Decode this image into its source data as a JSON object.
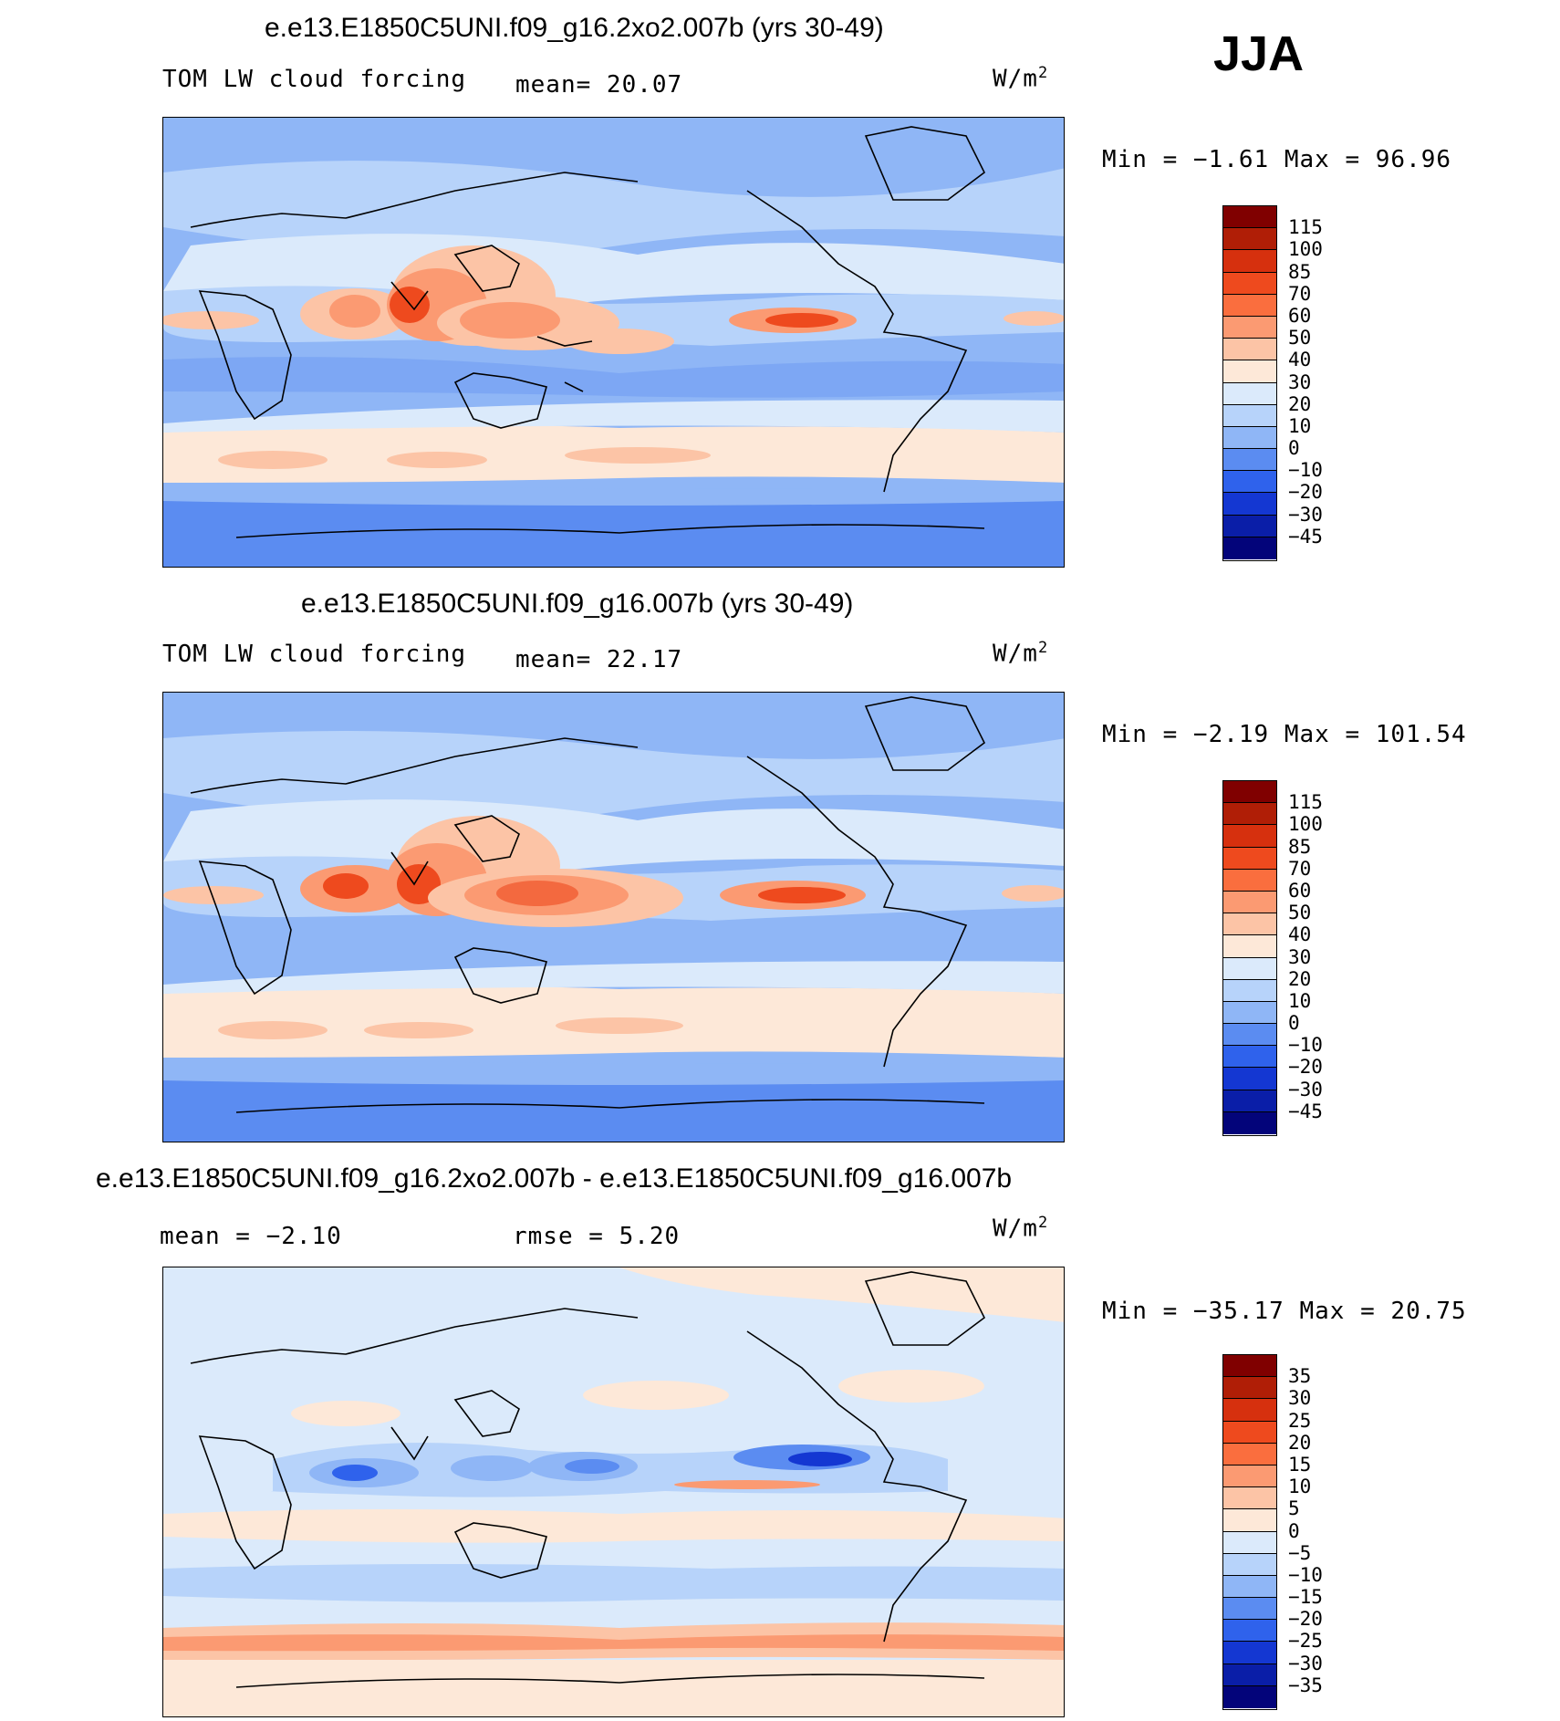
{
  "season": "JJA",
  "units_base": "W/m",
  "units_exp": "2",
  "panels": [
    {
      "title": "e.e13.E1850C5UNI.f09_g16.2xo2.007b (yrs 30-49)",
      "left_label": "TOM LW cloud forcing",
      "stat1": "mean=  20.07",
      "stat2": "",
      "minmax": "Min =  −1.61 Max =  96.96"
    },
    {
      "title": "e.e13.E1850C5UNI.f09_g16.007b (yrs 30-49)",
      "left_label": "TOM LW cloud forcing",
      "stat1": "mean=  22.17",
      "stat2": "",
      "minmax": "Min =  −2.19 Max = 101.54"
    },
    {
      "title": "e.e13.E1850C5UNI.f09_g16.2xo2.007b - e.e13.E1850C5UNI.f09_g16.007b",
      "left_label": "",
      "stat1": "mean =  −2.10",
      "stat2": "rmse =   5.20",
      "minmax": "Min = −35.17 Max =  20.75"
    }
  ],
  "colorbars": {
    "main": {
      "labels": [
        "115",
        "100",
        "85",
        "70",
        "60",
        "50",
        "40",
        "30",
        "20",
        "10",
        "0",
        "−10",
        "−20",
        "−30",
        "−45"
      ],
      "colors": [
        "#800000",
        "#b01e06",
        "#d6300e",
        "#ee4a1e",
        "#fa6e3e",
        "#fb9a72",
        "#fcc4a6",
        "#fde8d8",
        "#dbeafb",
        "#b7d3fa",
        "#8fb6f6",
        "#5b8cf1",
        "#2f62ec",
        "#1437d2",
        "#0a1ea8",
        "#03047a"
      ]
    },
    "diff": {
      "labels": [
        "35",
        "30",
        "25",
        "20",
        "15",
        "10",
        "5",
        "0",
        "−5",
        "−10",
        "−15",
        "−20",
        "−25",
        "−30",
        "−35"
      ],
      "colors": [
        "#800000",
        "#b01e06",
        "#d6300e",
        "#ee4a1e",
        "#fa6e3e",
        "#fb9a72",
        "#fcc4a6",
        "#fde8d8",
        "#dbeafb",
        "#b7d3fa",
        "#8fb6f6",
        "#5b8cf1",
        "#2f62ec",
        "#1437d2",
        "#0a1ea8",
        "#03047a"
      ]
    }
  },
  "map_colors": {
    "ocean_low": "#8fb6f6",
    "ocean_mid": "#b7d3fa",
    "light": "#dbeafb",
    "warm1": "#fde8d8",
    "warm2": "#fcc4a6",
    "warm3": "#fb9a72",
    "warm4": "#ee4a1e",
    "blue1": "#5b8cf1",
    "blue2": "#2f62ec",
    "blue3": "#1437d2"
  }
}
